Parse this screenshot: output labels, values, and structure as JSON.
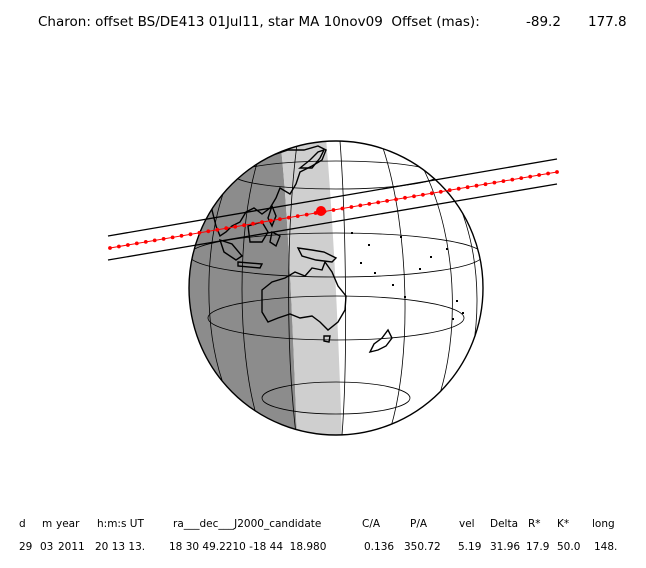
{
  "title": {
    "main": "Charon: offset BS/DE413 01Jul11, star MA 10nov09  Offset (mas):",
    "offset_ra": "-89.2",
    "offset_dec": "177.8"
  },
  "table": {
    "headers": [
      "d",
      "m",
      "year",
      "h:m:s UT",
      "ra___dec___J2000_candidate",
      "C/A",
      "P/A",
      "vel",
      "Delta",
      "R*",
      "K*",
      "long"
    ],
    "values": [
      "29",
      "03",
      "2011",
      "20 13 13.",
      "18 30 49.2210 -18 44  18.980",
      "0.136",
      "350.72",
      "5.19",
      "31.96",
      "17.9",
      "50.0",
      "148."
    ]
  },
  "colors": {
    "night": "#8c8c8c",
    "twilight": "#cfcfcf",
    "day": "#ffffff",
    "track": "#ff0000",
    "lines": "#000000"
  },
  "icons": [
    "globe-diagram",
    "occultation-shadow-track",
    "closest-approach-marker"
  ]
}
